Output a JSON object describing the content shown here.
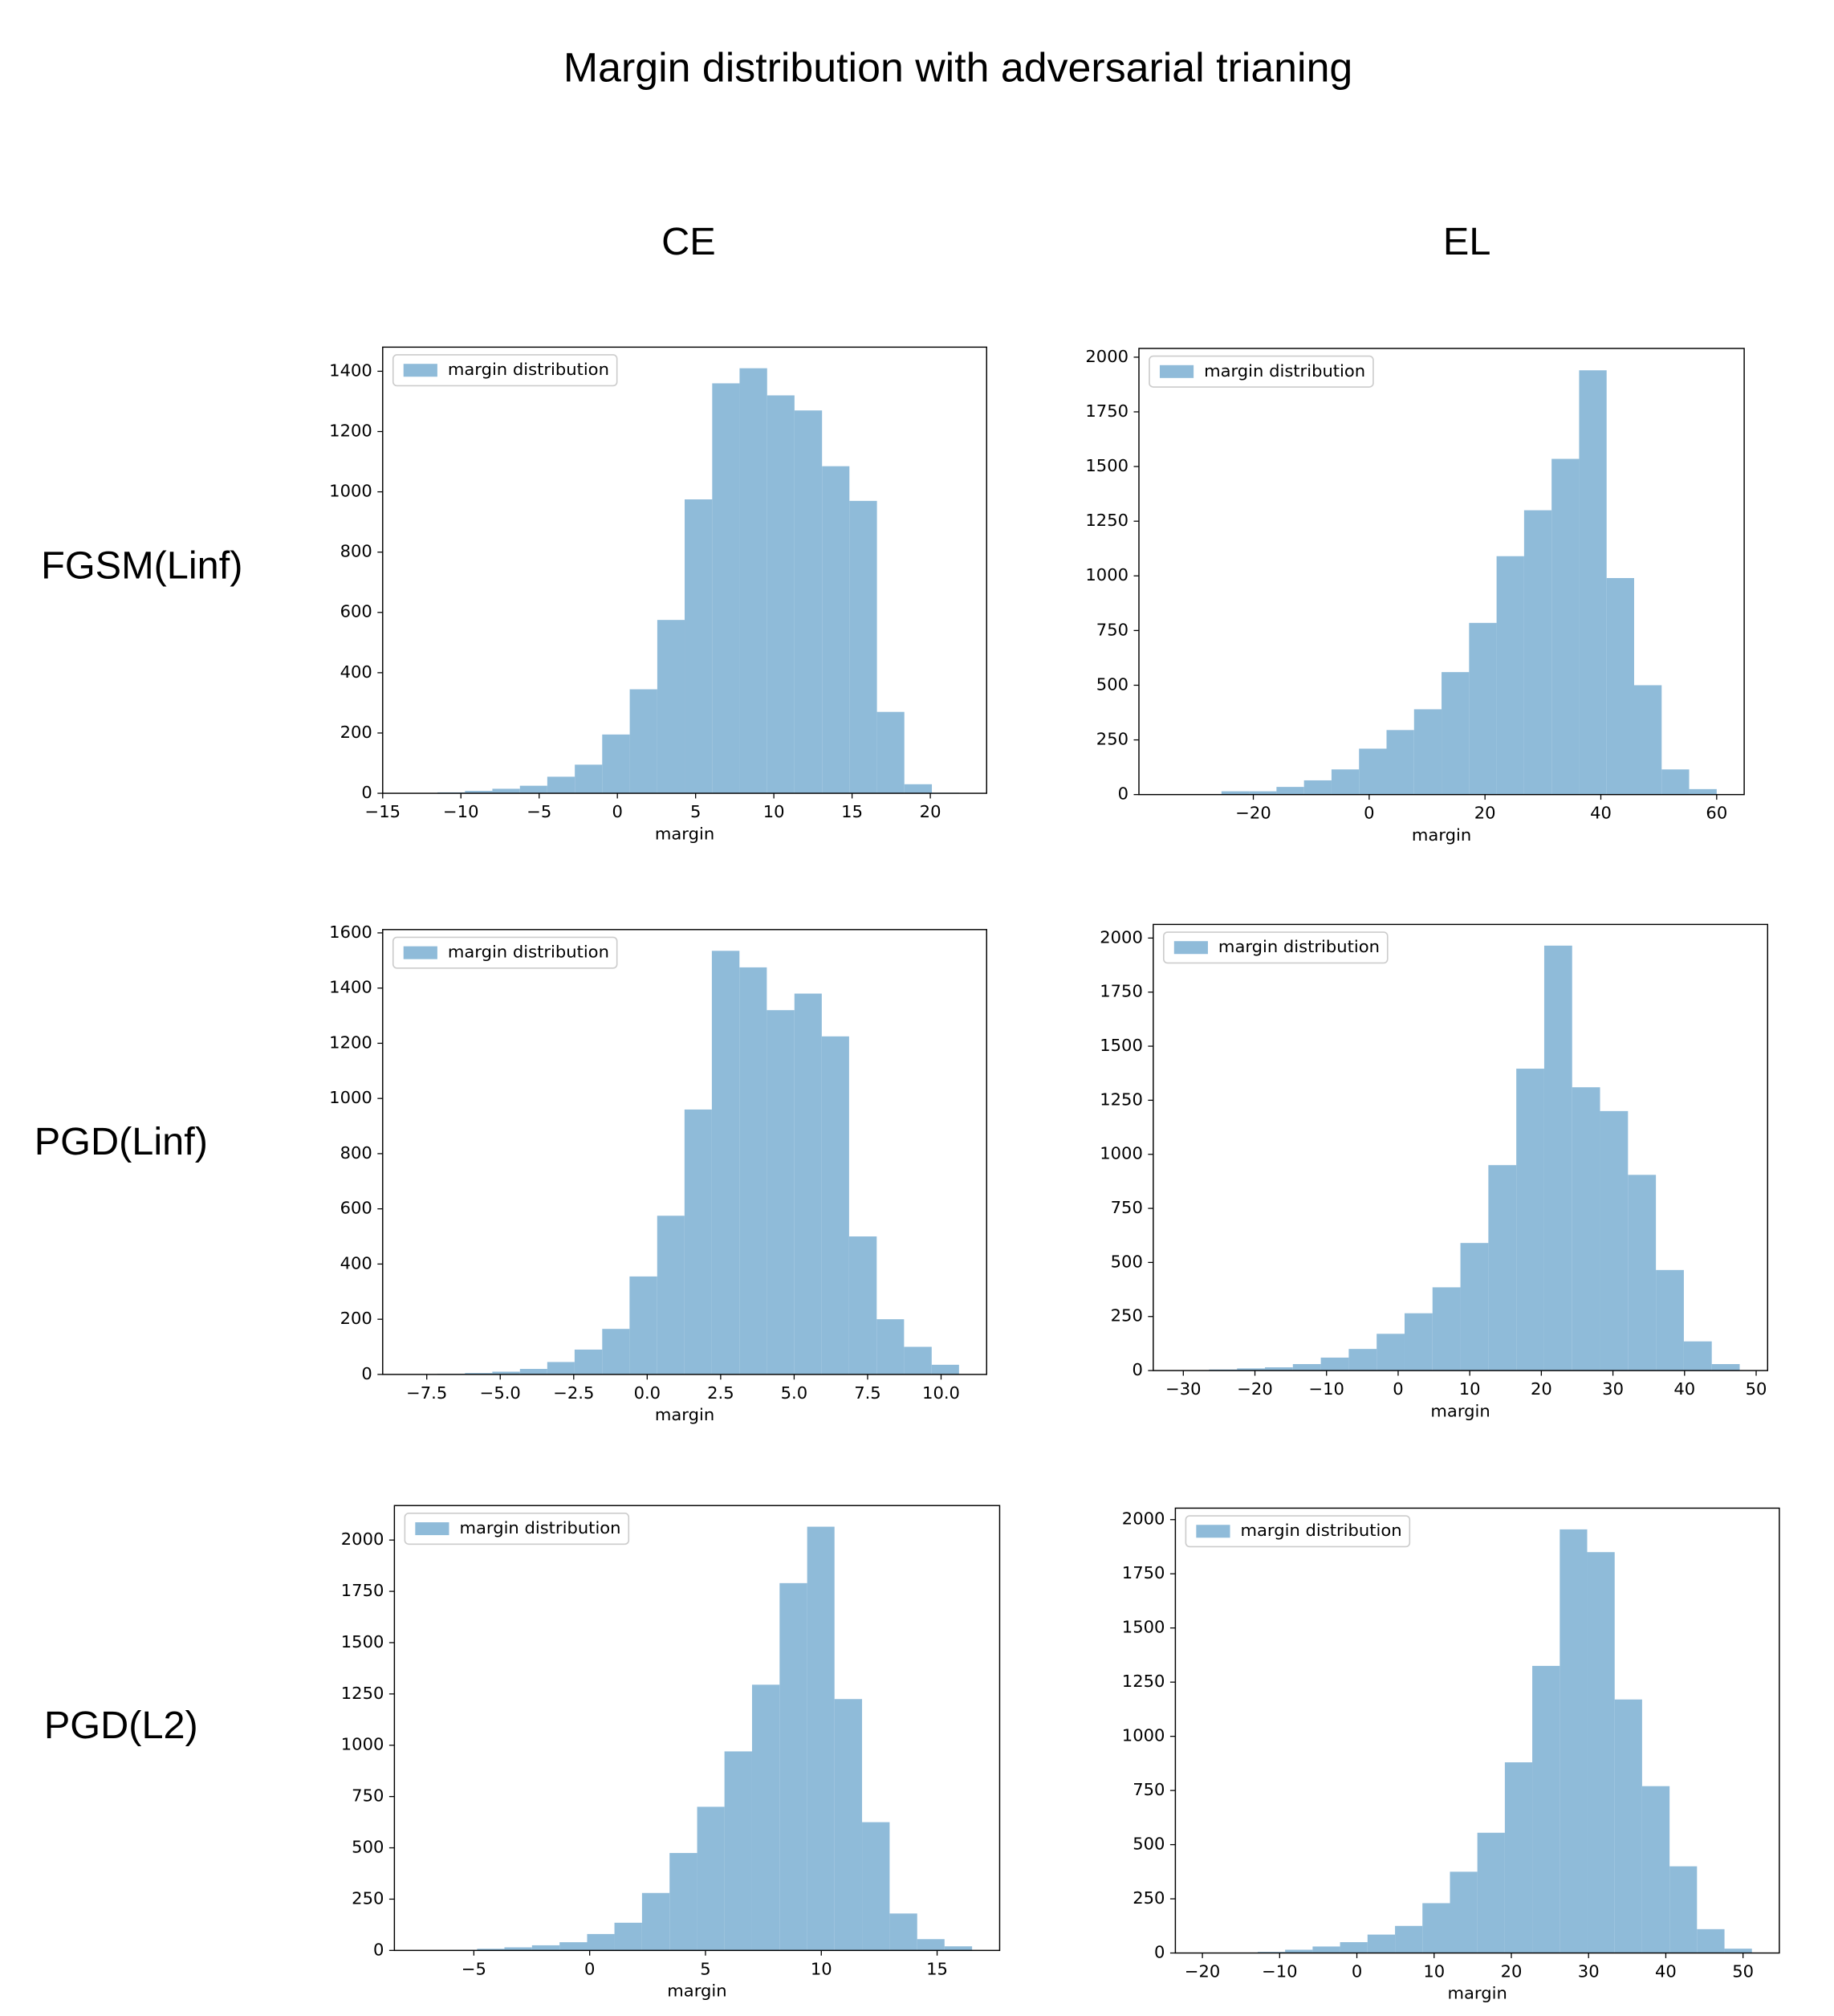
{
  "title": "Margin distribution  with adversarial trianing",
  "column_headers": [
    "CE",
    "EL"
  ],
  "row_labels": [
    "FGSM(Linf)",
    "PGD(Linf)",
    "PGD(L2)"
  ],
  "chart_data": [
    {
      "type": "histogram",
      "xlabel": "margin",
      "legend": "upper left",
      "bins": [
        -13.25,
        -11.5,
        -9.74,
        -7.99,
        -6.23,
        -4.48,
        -2.72,
        -0.97,
        0.79,
        2.55,
        4.3,
        6.06,
        7.81,
        9.57,
        11.32,
        13.08,
        14.83,
        16.59,
        18.34,
        20.1,
        21.85
      ],
      "series": [
        {
          "name": "margin distribution",
          "color": "#8fbbd9",
          "values": [
            1,
            3,
            8,
            15,
            25,
            55,
            95,
            195,
            345,
            575,
            975,
            1360,
            1410,
            1320,
            1270,
            1085,
            970,
            270,
            30,
            2
          ]
        }
      ],
      "xlim": [
        -15,
        23.6
      ],
      "ylim": [
        0,
        1480
      ],
      "xticks": [
        {
          "value": -15,
          "label": "−15"
        },
        {
          "value": -10,
          "label": "−10"
        },
        {
          "value": -5,
          "label": "−5"
        },
        0,
        5,
        10,
        15,
        20
      ],
      "yticks": [
        0,
        200,
        400,
        600,
        800,
        1000,
        1200,
        1400
      ]
    },
    {
      "type": "histogram",
      "xlabel": "margin",
      "legend": "upper left",
      "bins": [
        -35,
        -30.25,
        -25.5,
        -20.75,
        -16,
        -11.25,
        -6.5,
        -1.75,
        3,
        7.75,
        12.5,
        17.25,
        22,
        26.75,
        31.5,
        36.25,
        41,
        45.75,
        50.5,
        55.25,
        60
      ],
      "series": [
        {
          "name": "margin distribution",
          "color": "#8fbbd9",
          "values": [
            0,
            0,
            15,
            15,
            35,
            65,
            115,
            210,
            295,
            390,
            560,
            785,
            1090,
            1300,
            1535,
            1940,
            990,
            500,
            115,
            25
          ]
        }
      ],
      "xlim": [
        -39.75,
        64.75
      ],
      "ylim": [
        0,
        2040
      ],
      "xticks": [
        {
          "value": -20,
          "label": "−20"
        },
        0,
        20,
        40,
        60
      ],
      "yticks": [
        0,
        250,
        500,
        750,
        1000,
        1250,
        1500,
        1750,
        2000
      ]
    },
    {
      "type": "histogram",
      "xlabel": "margin",
      "legend": "upper left",
      "bins": [
        -8.07,
        -7.14,
        -6.2,
        -5.27,
        -4.33,
        -3.4,
        -2.47,
        -1.53,
        -0.6,
        0.34,
        1.27,
        2.2,
        3.14,
        4.07,
        5.01,
        5.94,
        6.87,
        7.81,
        8.74,
        9.68,
        10.61
      ],
      "series": [
        {
          "name": "margin distribution",
          "color": "#8fbbd9",
          "values": [
            1,
            2,
            5,
            10,
            20,
            45,
            90,
            165,
            355,
            575,
            960,
            1535,
            1475,
            1320,
            1380,
            1225,
            500,
            200,
            100,
            35
          ]
        }
      ],
      "xlim": [
        -9.0,
        11.55
      ],
      "ylim": [
        0,
        1612
      ],
      "xticks": [
        {
          "value": -7.5,
          "label": "−7.5"
        },
        {
          "value": -5,
          "label": "−5.0"
        },
        {
          "value": -2.5,
          "label": "−2.5"
        },
        {
          "value": 0,
          "label": "0.0"
        },
        2.5,
        {
          "value": 5,
          "label": "5.0"
        },
        7.5,
        {
          "value": 10,
          "label": "10.0"
        }
      ],
      "yticks": [
        0,
        200,
        400,
        600,
        800,
        1000,
        1200,
        1400,
        1600
      ]
    },
    {
      "type": "histogram",
      "xlabel": "margin",
      "legend": "upper left",
      "bins": [
        -30.3,
        -26.4,
        -22.5,
        -18.6,
        -14.7,
        -10.8,
        -6.9,
        -3,
        0.9,
        4.8,
        8.7,
        12.6,
        16.5,
        20.4,
        24.3,
        28.2,
        32.1,
        36,
        39.9,
        43.8,
        47.7
      ],
      "series": [
        {
          "name": "margin distribution",
          "color": "#8fbbd9",
          "values": [
            1,
            5,
            10,
            15,
            30,
            60,
            100,
            170,
            265,
            385,
            590,
            950,
            1396,
            1965,
            1310,
            1200,
            905,
            465,
            135,
            30
          ]
        }
      ],
      "xlim": [
        -34.2,
        51.6
      ],
      "ylim": [
        0,
        2063
      ],
      "xticks": [
        {
          "value": -30,
          "label": "−30"
        },
        {
          "value": -20,
          "label": "−20"
        },
        {
          "value": -10,
          "label": "−10"
        },
        0,
        10,
        20,
        30,
        40,
        50
      ],
      "yticks": [
        0,
        250,
        500,
        750,
        1000,
        1250,
        1500,
        1750,
        2000
      ]
    },
    {
      "type": "histogram",
      "xlabel": "margin",
      "legend": "upper left",
      "bins": [
        -7.24,
        -6.05,
        -4.86,
        -3.68,
        -2.49,
        -1.3,
        -0.11,
        1.07,
        2.26,
        3.45,
        4.64,
        5.82,
        7.01,
        8.2,
        9.39,
        10.57,
        11.76,
        12.95,
        14.14,
        15.32,
        16.51
      ],
      "series": [
        {
          "name": "margin distribution",
          "color": "#8fbbd9",
          "values": [
            1,
            2,
            8,
            15,
            25,
            40,
            80,
            135,
            280,
            475,
            700,
            970,
            1295,
            1790,
            2065,
            1225,
            625,
            180,
            55,
            20
          ]
        }
      ],
      "xlim": [
        -8.43,
        17.7
      ],
      "ylim": [
        0,
        2168
      ],
      "xticks": [
        {
          "value": -5,
          "label": "−5"
        },
        0,
        5,
        10,
        15
      ],
      "yticks": [
        0,
        250,
        500,
        750,
        1000,
        1250,
        1500,
        1750,
        2000
      ]
    },
    {
      "type": "histogram",
      "xlabel": "margin",
      "legend": "upper left",
      "bins": [
        -19.95,
        -16.4,
        -12.84,
        -9.29,
        -5.73,
        -2.18,
        1.38,
        4.94,
        8.49,
        12.05,
        15.6,
        19.16,
        22.71,
        26.27,
        29.82,
        33.38,
        36.93,
        40.49,
        44.04,
        47.6,
        51.15
      ],
      "series": [
        {
          "name": "margin distribution",
          "color": "#8fbbd9",
          "values": [
            1,
            2,
            5,
            15,
            30,
            50,
            85,
            125,
            230,
            375,
            555,
            880,
            1325,
            1955,
            1850,
            1170,
            770,
            400,
            110,
            20
          ]
        }
      ],
      "xlim": [
        -23.5,
        54.7
      ],
      "ylim": [
        0,
        2053
      ],
      "xticks": [
        {
          "value": -20,
          "label": "−20"
        },
        {
          "value": -10,
          "label": "−10"
        },
        0,
        10,
        20,
        30,
        40,
        50
      ],
      "yticks": [
        0,
        250,
        500,
        750,
        1000,
        1250,
        1500,
        1750,
        2000
      ]
    }
  ]
}
